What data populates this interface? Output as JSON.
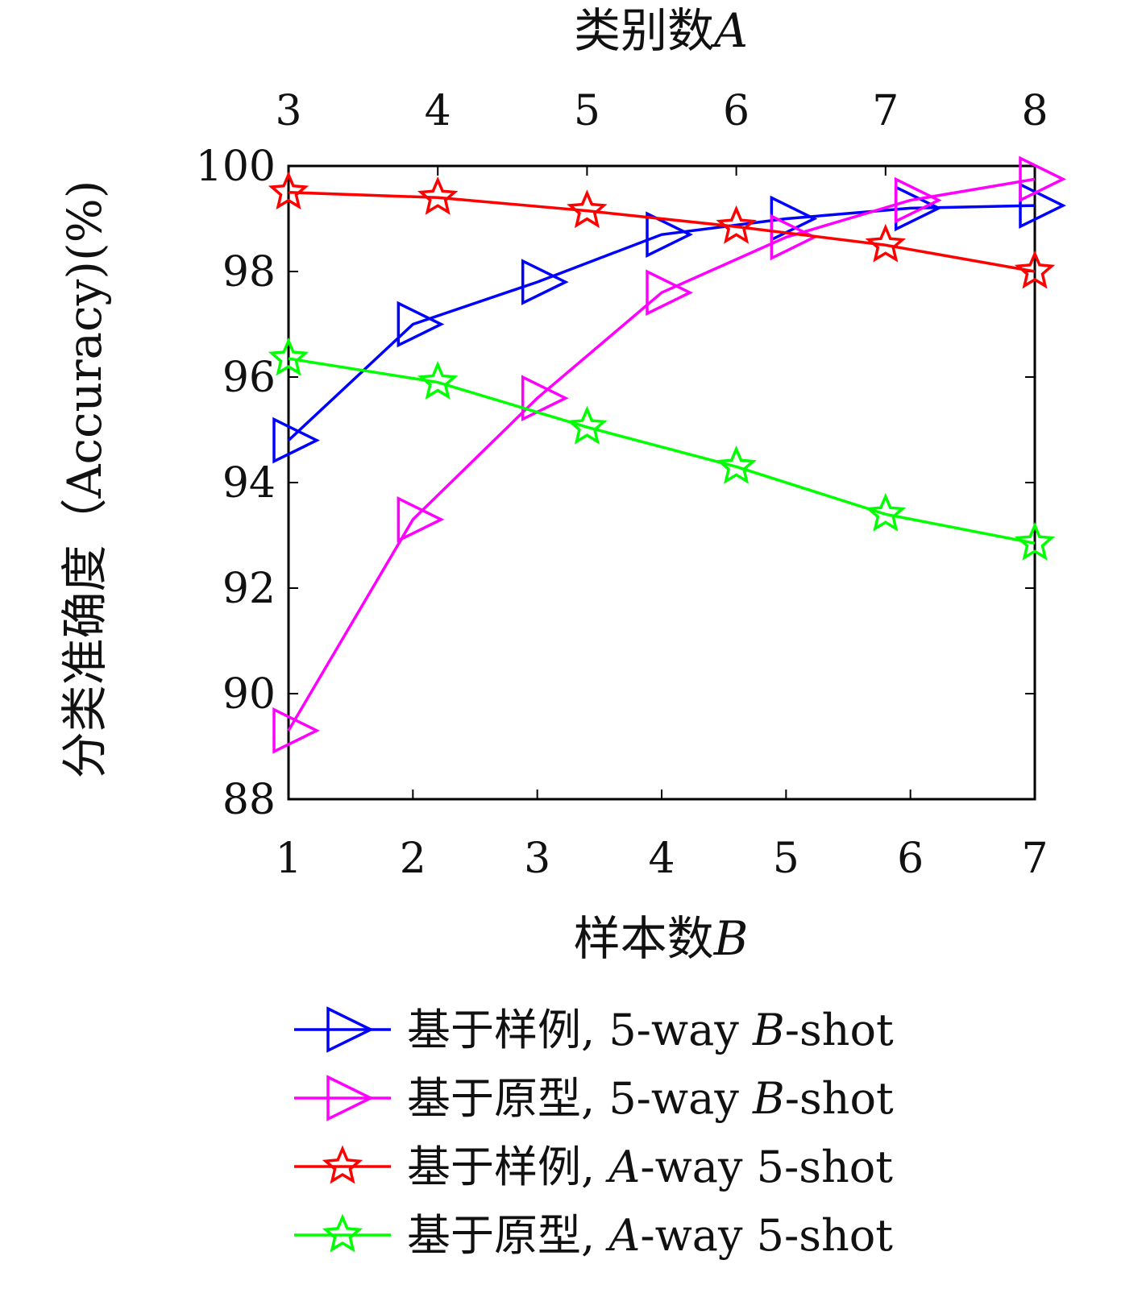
{
  "chart_data": {
    "type": "line",
    "top_axis": {
      "title": "类别数",
      "variable": "A",
      "ticks": [
        "3",
        "4",
        "5",
        "6",
        "7",
        "8"
      ]
    },
    "bottom_axis": {
      "title": "样本数",
      "variable": "B",
      "ticks": [
        "1",
        "2",
        "3",
        "4",
        "5",
        "6",
        "7"
      ]
    },
    "y_axis": {
      "title": "分类准确度（Accuracy)(%)",
      "ticks": [
        "100",
        "98",
        "96",
        "94",
        "92",
        "90",
        "88"
      ],
      "ylim": [
        88,
        100
      ]
    },
    "series": [
      {
        "name": "基于样例, 5-way B-shot",
        "legend_prefix": "基于样例, 5-way ",
        "legend_var": "B",
        "legend_suffix": "-shot",
        "color": "#0000ff",
        "marker": "triangle-right",
        "axis": "bottom",
        "x": [
          1,
          2,
          3,
          4,
          5,
          6,
          7
        ],
        "y": [
          94.8,
          97.0,
          97.8,
          98.7,
          99.0,
          99.2,
          99.25
        ]
      },
      {
        "name": "基于原型, 5-way B-shot",
        "legend_prefix": "基于原型, 5-way ",
        "legend_var": "B",
        "legend_suffix": "-shot",
        "color": "#ff00ff",
        "marker": "triangle-right",
        "axis": "bottom",
        "x": [
          1,
          2,
          3,
          4,
          5,
          6,
          7
        ],
        "y": [
          89.3,
          93.3,
          95.6,
          97.6,
          98.65,
          99.35,
          99.75
        ]
      },
      {
        "name": "基于样例, A-way 5-shot",
        "legend_prefix": "基于样例, ",
        "legend_var": "A",
        "legend_suffix": "-way 5-shot",
        "color": "#ff0000",
        "marker": "star",
        "axis": "top",
        "x": [
          3,
          4,
          5,
          6,
          7,
          8
        ],
        "y": [
          99.5,
          99.4,
          99.15,
          98.85,
          98.5,
          98.0
        ]
      },
      {
        "name": "基于原型, A-way 5-shot",
        "legend_prefix": "基于原型, ",
        "legend_var": "A",
        "legend_suffix": "-way 5-shot",
        "color": "#00ff00",
        "marker": "star",
        "axis": "top",
        "x": [
          3,
          4,
          5,
          6,
          7,
          8
        ],
        "y": [
          96.35,
          95.9,
          95.05,
          94.3,
          93.4,
          92.85
        ]
      }
    ],
    "legend_placement": "bottom",
    "grid": false
  }
}
